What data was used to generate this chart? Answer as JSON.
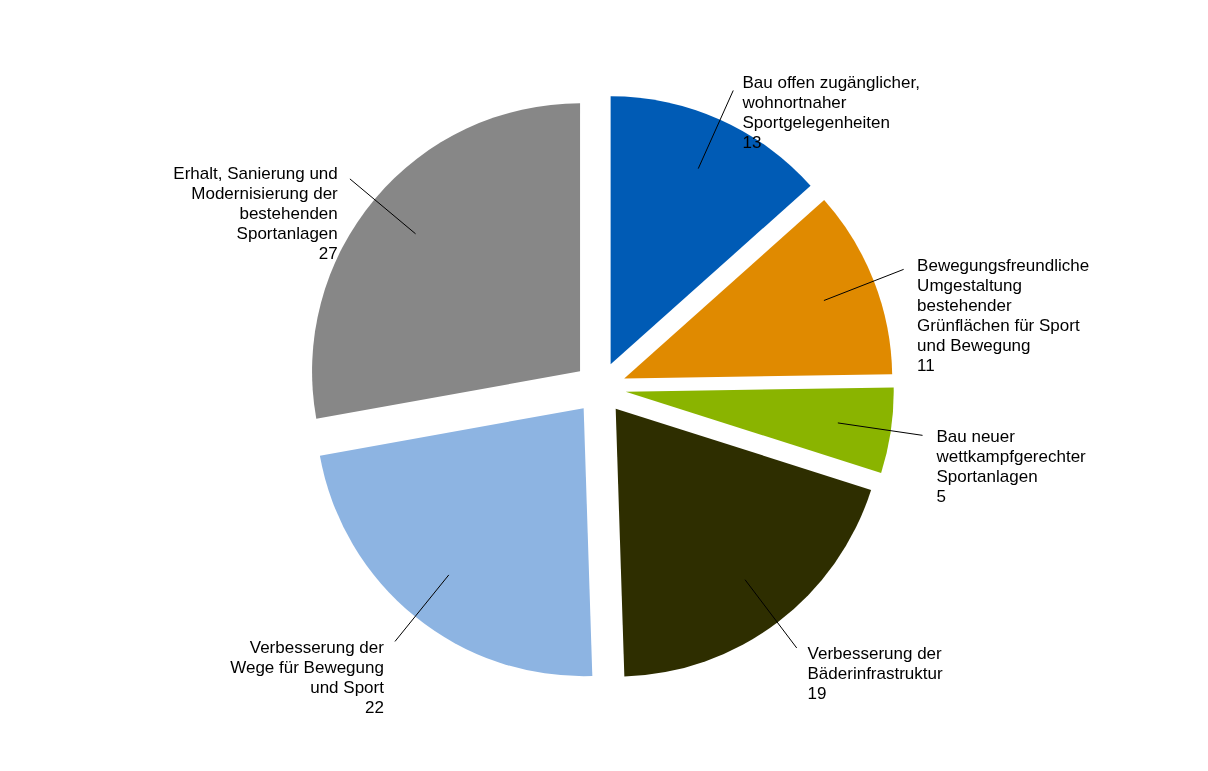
{
  "chart_data": {
    "type": "pie",
    "categories": [
      "Bau offen zugänglicher,\nwohnortnaher\nSportgelegenheiten",
      "Bewegungsfreundliche\nUmgestaltung\nbestehender\nGrünflächen für Sport\nund Bewegung",
      "Bau neuer\nwettkampfgerechter\nSportanlagen",
      "Verbesserung der\nBäderinfrastruktur",
      "Verbesserung der\nWege für Bewegung\nund Sport",
      "Erhalt, Sanierung und\nModernisierung der\nbestehenden\nSportanlagen"
    ],
    "values": [
      13,
      11,
      5,
      19,
      22,
      27
    ],
    "colors": [
      "#005bb5",
      "#e08a00",
      "#8ab400",
      "#2e2e00",
      "#8db4e2",
      "#878787"
    ],
    "data_labels": true
  }
}
